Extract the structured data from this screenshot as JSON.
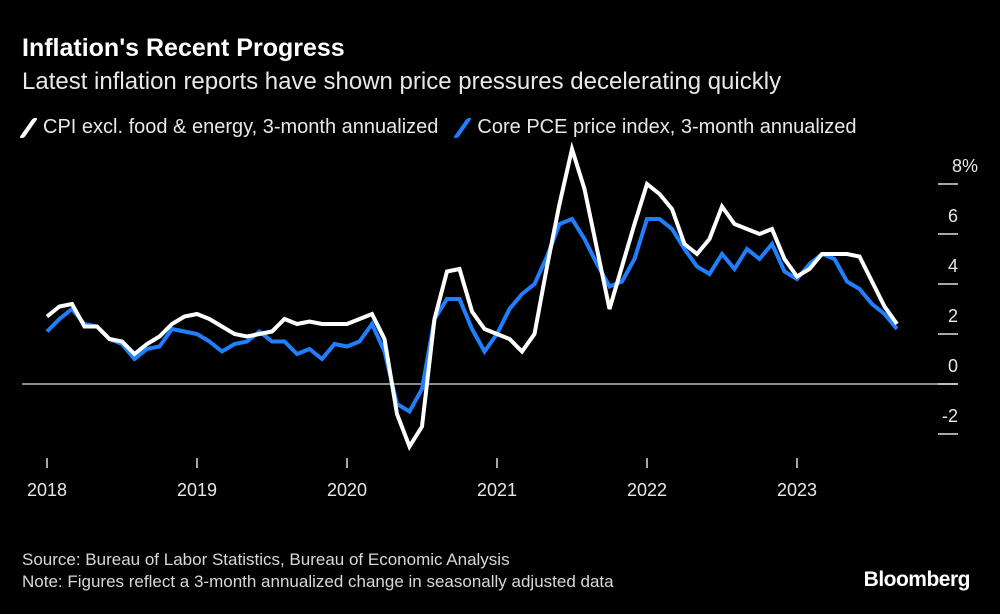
{
  "title": "Inflation's Recent Progress",
  "subtitle": "Latest inflation reports have shown price pressures decelerating quickly",
  "source": "Source: Bureau of Labor Statistics, Bureau of Economic Analysis",
  "note": "Note: Figures reflect a 3-month annualized change in seasonally adjusted data",
  "logo": "Bloomberg",
  "chart_data": {
    "type": "line",
    "title": "Inflation's Recent Progress",
    "subtitle": "Latest inflation reports have shown price pressures decelerating quickly",
    "x_start": "2018-01",
    "x_frequency": "monthly",
    "x_tick_labels": [
      "2018",
      "2019",
      "2020",
      "2021",
      "2022",
      "2023"
    ],
    "y_tick_labels": [
      "8%",
      "6",
      "4",
      "2",
      "0",
      "-2"
    ],
    "y_ticks": [
      8,
      6,
      4,
      2,
      0,
      -2
    ],
    "ylim": [
      -3,
      9.5
    ],
    "y_axis_side": "right",
    "grid": false,
    "legend_position": "top",
    "series": [
      {
        "name": "CPI excl. food & energy, 3-month annualized",
        "color": "#ffffff",
        "values": [
          2.7,
          3.1,
          3.2,
          2.3,
          2.3,
          1.8,
          1.7,
          1.2,
          1.6,
          1.9,
          2.4,
          2.7,
          2.8,
          2.6,
          2.3,
          2.0,
          1.9,
          2.0,
          2.1,
          2.6,
          2.4,
          2.5,
          2.4,
          2.4,
          2.4,
          2.6,
          2.8,
          1.8,
          -1.2,
          -2.5,
          -1.7,
          2.6,
          4.5,
          4.6,
          2.9,
          2.2,
          2.0,
          1.8,
          1.3,
          2.0,
          4.7,
          7.2,
          9.4,
          7.8,
          5.4,
          3.0,
          4.7,
          6.4,
          8.0,
          7.6,
          7.0,
          5.6,
          5.2,
          5.8,
          7.1,
          6.4,
          6.2,
          6.0,
          6.2,
          5.0,
          4.3,
          4.6,
          5.2,
          5.2,
          5.2,
          5.1,
          4.1,
          3.1,
          2.4
        ]
      },
      {
        "name": "Core PCE price index, 3-month annualized",
        "color": "#1f7fff",
        "values": [
          2.1,
          2.6,
          3.0,
          2.4,
          2.3,
          1.8,
          1.6,
          1.0,
          1.4,
          1.5,
          2.2,
          2.1,
          2.0,
          1.7,
          1.3,
          1.6,
          1.7,
          2.1,
          1.7,
          1.7,
          1.2,
          1.4,
          1.0,
          1.6,
          1.5,
          1.7,
          2.4,
          1.3,
          -0.8,
          -1.1,
          -0.2,
          2.6,
          3.4,
          3.4,
          2.2,
          1.3,
          2.0,
          3.0,
          3.6,
          4.0,
          5.1,
          6.4,
          6.6,
          5.8,
          4.8,
          3.9,
          4.1,
          5.0,
          6.6,
          6.6,
          6.2,
          5.4,
          4.7,
          4.4,
          5.2,
          4.6,
          5.4,
          5.0,
          5.6,
          4.5,
          4.2,
          4.8,
          5.2,
          5.0,
          4.1,
          3.8,
          3.2,
          2.8,
          2.2
        ]
      }
    ]
  }
}
